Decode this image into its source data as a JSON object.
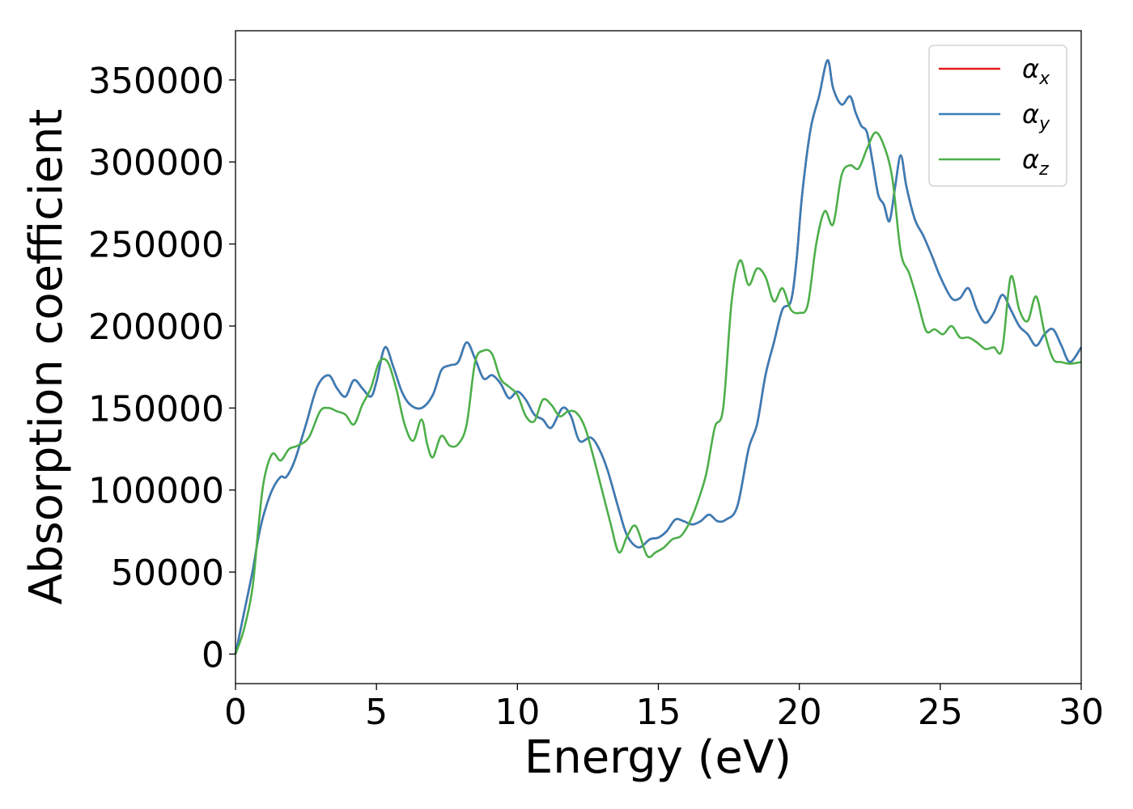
{
  "chart_data": {
    "type": "line",
    "title": "",
    "xlabel": "Energy (eV)",
    "ylabel": "Absorption coefficient",
    "xlim": [
      0,
      30
    ],
    "ylim": [
      -18000,
      380000
    ],
    "xticks": [
      0,
      5,
      10,
      15,
      20,
      25,
      30
    ],
    "xtick_labels": [
      "0",
      "5",
      "10",
      "15",
      "20",
      "25",
      "30"
    ],
    "yticks": [
      0,
      50000,
      100000,
      150000,
      200000,
      250000,
      300000,
      350000
    ],
    "ytick_labels": [
      "0",
      "50000",
      "100000",
      "150000",
      "200000",
      "250000",
      "300000",
      "350000"
    ],
    "grid": false,
    "legend_position": "top-right",
    "series": [
      {
        "name": "α_x",
        "symbol": "α",
        "subscript": "x",
        "color": "#e41a1c",
        "x": [
          0,
          0.3,
          0.6,
          0.8,
          1.0,
          1.3,
          1.6,
          1.8,
          2.1,
          2.5,
          2.9,
          3.3,
          3.6,
          3.9,
          4.2,
          4.5,
          4.8,
          5.0,
          5.3,
          5.6,
          5.9,
          6.2,
          6.6,
          7.0,
          7.3,
          7.6,
          7.9,
          8.2,
          8.5,
          8.8,
          9.1,
          9.4,
          9.7,
          10.0,
          10.3,
          10.6,
          10.9,
          11.2,
          11.6,
          11.9,
          12.2,
          12.6,
          12.9,
          13.2,
          13.6,
          13.9,
          14.3,
          14.7,
          15.0,
          15.3,
          15.6,
          15.9,
          16.2,
          16.5,
          16.8,
          17.1,
          17.4,
          17.8,
          18.2,
          18.5,
          18.8,
          19.1,
          19.4,
          19.7,
          19.9,
          20.1,
          20.4,
          20.7,
          21.0,
          21.2,
          21.5,
          21.8,
          22.0,
          22.2,
          22.4,
          22.6,
          22.8,
          23.0,
          23.2,
          23.4,
          23.6,
          23.8,
          24.1,
          24.4,
          24.7,
          25.0,
          25.4,
          25.7,
          26.0,
          26.3,
          26.6,
          26.9,
          27.2,
          27.5,
          27.8,
          28.1,
          28.4,
          28.7,
          29.0,
          29.3,
          29.6,
          30.0
        ],
        "y": [
          0,
          25000,
          50000,
          70000,
          85000,
          100000,
          108000,
          108000,
          118000,
          140000,
          163000,
          170000,
          162000,
          157000,
          167000,
          162000,
          157000,
          166000,
          187000,
          175000,
          160000,
          152000,
          150000,
          158000,
          173000,
          176000,
          178000,
          190000,
          180000,
          168000,
          170000,
          165000,
          156000,
          160000,
          155000,
          146000,
          143000,
          138000,
          150000,
          145000,
          130000,
          132000,
          125000,
          112000,
          88000,
          72000,
          65000,
          70000,
          71000,
          75000,
          82000,
          81000,
          79000,
          81000,
          85000,
          81000,
          82000,
          90000,
          125000,
          140000,
          170000,
          190000,
          210000,
          215000,
          240000,
          280000,
          320000,
          340000,
          362000,
          345000,
          335000,
          340000,
          330000,
          322000,
          318000,
          300000,
          280000,
          274000,
          264000,
          285000,
          304000,
          285000,
          265000,
          255000,
          243000,
          230000,
          217000,
          217000,
          223000,
          210000,
          202000,
          208000,
          219000,
          210000,
          200000,
          195000,
          188000,
          195000,
          198000,
          188000,
          178000,
          187000
        ]
      },
      {
        "name": "α_y",
        "symbol": "α",
        "subscript": "y",
        "color": "#377eb8",
        "x": [
          0,
          0.3,
          0.6,
          0.8,
          1.0,
          1.3,
          1.6,
          1.8,
          2.1,
          2.5,
          2.9,
          3.3,
          3.6,
          3.9,
          4.2,
          4.5,
          4.8,
          5.0,
          5.3,
          5.6,
          5.9,
          6.2,
          6.6,
          7.0,
          7.3,
          7.6,
          7.9,
          8.2,
          8.5,
          8.8,
          9.1,
          9.4,
          9.7,
          10.0,
          10.3,
          10.6,
          10.9,
          11.2,
          11.6,
          11.9,
          12.2,
          12.6,
          12.9,
          13.2,
          13.6,
          13.9,
          14.3,
          14.7,
          15.0,
          15.3,
          15.6,
          15.9,
          16.2,
          16.5,
          16.8,
          17.1,
          17.4,
          17.8,
          18.2,
          18.5,
          18.8,
          19.1,
          19.4,
          19.7,
          19.9,
          20.1,
          20.4,
          20.7,
          21.0,
          21.2,
          21.5,
          21.8,
          22.0,
          22.2,
          22.4,
          22.6,
          22.8,
          23.0,
          23.2,
          23.4,
          23.6,
          23.8,
          24.1,
          24.4,
          24.7,
          25.0,
          25.4,
          25.7,
          26.0,
          26.3,
          26.6,
          26.9,
          27.2,
          27.5,
          27.8,
          28.1,
          28.4,
          28.7,
          29.0,
          29.3,
          29.6,
          30.0
        ],
        "y": [
          0,
          25000,
          50000,
          70000,
          85000,
          100000,
          108000,
          108000,
          118000,
          140000,
          163000,
          170000,
          162000,
          157000,
          167000,
          162000,
          157000,
          166000,
          187000,
          175000,
          160000,
          152000,
          150000,
          158000,
          173000,
          176000,
          178000,
          190000,
          180000,
          168000,
          170000,
          165000,
          156000,
          160000,
          155000,
          146000,
          143000,
          138000,
          150000,
          145000,
          130000,
          132000,
          125000,
          112000,
          88000,
          72000,
          65000,
          70000,
          71000,
          75000,
          82000,
          81000,
          79000,
          81000,
          85000,
          81000,
          82000,
          90000,
          125000,
          140000,
          170000,
          190000,
          210000,
          215000,
          240000,
          280000,
          320000,
          340000,
          362000,
          345000,
          335000,
          340000,
          330000,
          322000,
          318000,
          300000,
          280000,
          274000,
          264000,
          285000,
          304000,
          285000,
          265000,
          255000,
          243000,
          230000,
          217000,
          217000,
          223000,
          210000,
          202000,
          208000,
          219000,
          210000,
          200000,
          195000,
          188000,
          195000,
          198000,
          188000,
          178000,
          187000
        ]
      },
      {
        "name": "α_z",
        "symbol": "α",
        "subscript": "z",
        "color": "#4daf4a",
        "x": [
          0,
          0.3,
          0.6,
          0.8,
          1.0,
          1.3,
          1.6,
          1.9,
          2.2,
          2.6,
          3.0,
          3.3,
          3.6,
          3.9,
          4.2,
          4.5,
          4.8,
          5.1,
          5.4,
          5.7,
          6.0,
          6.3,
          6.6,
          6.8,
          7.0,
          7.3,
          7.6,
          7.9,
          8.2,
          8.5,
          8.8,
          9.1,
          9.4,
          9.7,
          10.0,
          10.3,
          10.6,
          10.9,
          11.2,
          11.5,
          11.8,
          12.1,
          12.4,
          12.7,
          13.0,
          13.3,
          13.6,
          13.9,
          14.2,
          14.6,
          14.9,
          15.2,
          15.5,
          15.8,
          16.1,
          16.4,
          16.7,
          17.0,
          17.3,
          17.6,
          17.9,
          18.2,
          18.5,
          18.8,
          19.1,
          19.4,
          19.7,
          20.0,
          20.3,
          20.6,
          20.9,
          21.2,
          21.5,
          21.8,
          22.1,
          22.4,
          22.7,
          23.0,
          23.3,
          23.6,
          23.9,
          24.2,
          24.5,
          24.8,
          25.1,
          25.4,
          25.7,
          26.0,
          26.3,
          26.6,
          26.9,
          27.2,
          27.5,
          27.8,
          28.1,
          28.4,
          28.7,
          29.0,
          29.3,
          29.6,
          30.0
        ],
        "y": [
          0,
          15000,
          40000,
          75000,
          105000,
          122000,
          118000,
          125000,
          127000,
          132000,
          148000,
          150000,
          148000,
          146000,
          140000,
          152000,
          162000,
          178000,
          178000,
          162000,
          140000,
          130000,
          143000,
          128000,
          120000,
          133000,
          127000,
          128000,
          140000,
          178000,
          185000,
          183000,
          168000,
          163000,
          158000,
          145000,
          142000,
          155000,
          152000,
          145000,
          148000,
          147000,
          138000,
          120000,
          100000,
          80000,
          62000,
          72000,
          78000,
          60000,
          62000,
          65000,
          70000,
          72000,
          80000,
          93000,
          110000,
          138000,
          150000,
          215000,
          240000,
          225000,
          235000,
          230000,
          215000,
          223000,
          210000,
          208000,
          213000,
          250000,
          270000,
          262000,
          292000,
          298000,
          296000,
          308000,
          318000,
          310000,
          290000,
          245000,
          232000,
          215000,
          197000,
          198000,
          195000,
          200000,
          193000,
          193000,
          190000,
          186000,
          187000,
          186000,
          230000,
          210000,
          203000,
          218000,
          196000,
          180000,
          178000,
          177000,
          178000
        ]
      }
    ]
  }
}
